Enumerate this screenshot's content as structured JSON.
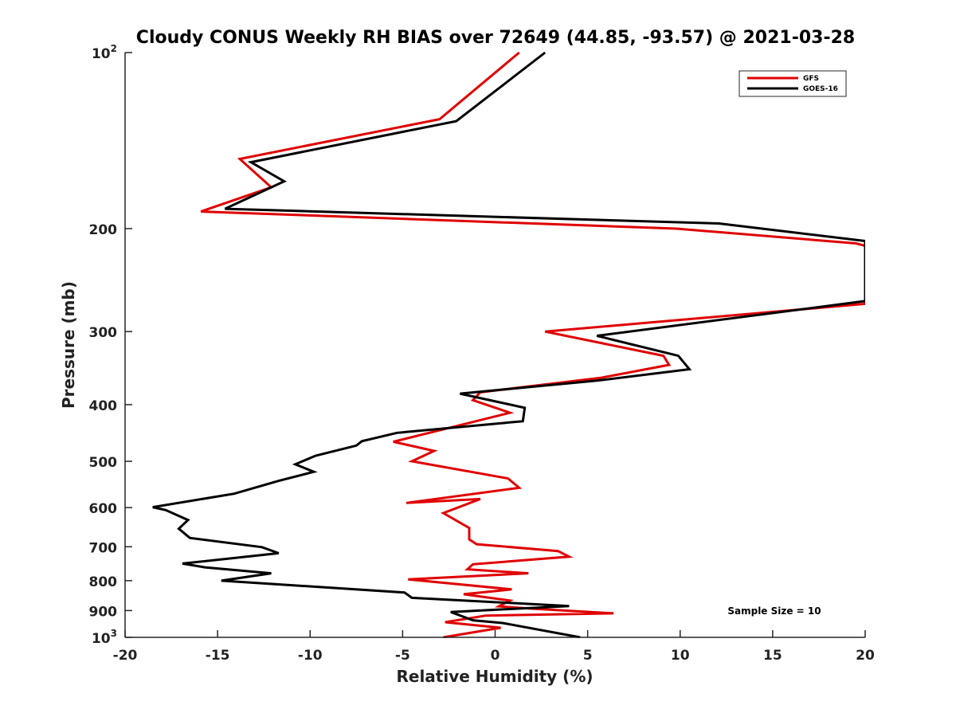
{
  "chart_data": {
    "type": "line",
    "title": "Cloudy CONUS Weekly RH BIAS over 72649 (44.85, -93.57) @ 2021-03-28",
    "xlabel": "Relative Humidity (%)",
    "ylabel": "Pressure (mb)",
    "xlim": [
      -20,
      20
    ],
    "ylim": [
      100,
      1000
    ],
    "y_scale": "log",
    "y_reversed": true,
    "x_ticks": [
      "-20",
      "-15",
      "-10",
      "-5",
      "0",
      "5",
      "10",
      "15",
      "20"
    ],
    "y_ticks": [
      {
        "value": 100,
        "base": "10",
        "exp": "2"
      },
      {
        "value": 200,
        "label": "200"
      },
      {
        "value": 300,
        "label": "300"
      },
      {
        "value": 400,
        "label": "400"
      },
      {
        "value": 500,
        "label": "500"
      },
      {
        "value": 600,
        "label": "600"
      },
      {
        "value": 700,
        "label": "700"
      },
      {
        "value": 800,
        "label": "800"
      },
      {
        "value": 900,
        "label": "900"
      },
      {
        "value": 1000,
        "base": "10",
        "exp": "3"
      }
    ],
    "grid": false,
    "legend_position": "top-right",
    "annotation": "Sample Size = 10",
    "series": [
      {
        "name": "GFS",
        "color": "#e00000",
        "x": [
          1.3,
          -3.0,
          -13.8,
          -12.1,
          -15.9,
          9.8,
          19.5,
          20,
          20,
          2.7,
          9.1,
          9.4,
          5.7,
          -0.8,
          -1.2,
          0.8,
          -5.5,
          -3.3,
          -4.5,
          0.7,
          1.3,
          -4.8,
          -0.8,
          -2.8,
          -1.4,
          -1.4,
          -1.0,
          3.4,
          4.0,
          -1.2,
          -1.5,
          1.8,
          -4.7,
          0.9,
          -1.7,
          0.8,
          0.2,
          1.9,
          6.4,
          -0.5,
          -2.7,
          0.3,
          -2.8
        ],
        "y": [
          100,
          130,
          152,
          170,
          187,
          200,
          212,
          214,
          269,
          300,
          330,
          342,
          360,
          381,
          393,
          413,
          463,
          480,
          500,
          535,
          555,
          589,
          580,
          613,
          650,
          680,
          693,
          712,
          728,
          750,
          765,
          777,
          796,
          828,
          844,
          865,
          885,
          893,
          910,
          918,
          942,
          963,
          1000
        ]
      },
      {
        "name": "GOES-16",
        "color": "#000000",
        "x": [
          2.7,
          -2.1,
          -13.2,
          -11.4,
          -14.6,
          12.1,
          20,
          20,
          5.5,
          9.9,
          10.5,
          5.5,
          -1.9,
          1.6,
          1.5,
          -5.3,
          -7.2,
          -7.5,
          -9.7,
          -10.8,
          -9.8,
          -11.7,
          -14.1,
          -18.5,
          -17.8,
          -16.6,
          -17.1,
          -16.5,
          -12.6,
          -11.7,
          -16.9,
          -15.7,
          -12.1,
          -14.8,
          -4.9,
          -4.5,
          4.0,
          -2.4,
          -1.2,
          0.4,
          4.6
        ],
        "y": [
          100,
          131,
          154,
          166,
          185,
          196,
          210,
          266,
          305,
          330,
          348,
          364,
          383,
          405,
          427,
          447,
          462,
          470,
          489,
          506,
          521,
          540,
          568,
          599,
          606,
          630,
          652,
          676,
          701,
          718,
          748,
          759,
          777,
          800,
          838,
          856,
          884,
          905,
          935,
          945,
          1000
        ]
      }
    ]
  }
}
